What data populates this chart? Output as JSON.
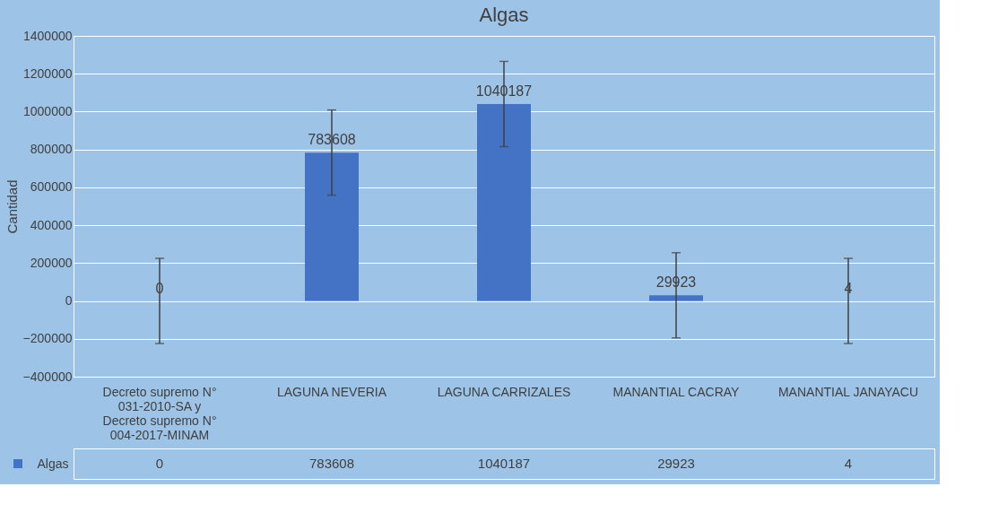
{
  "chart_data": {
    "type": "bar",
    "title": "Algas",
    "ylabel": "Cantidad",
    "categories": [
      "Decreto supremo N° 031-2010-SA y Decreto supremo N° 004-2017-MINAM",
      "LAGUNA NEVERIA",
      "LAGUNA CARRIZALES",
      "MANANTIAL CACRAY",
      "MANANTIAL JANAYACU"
    ],
    "series": [
      {
        "name": "Algas",
        "color": "#4472c4",
        "values": [
          0,
          783608,
          1040187,
          29923,
          4
        ],
        "errors": [
          225000,
          225000,
          225000,
          225000,
          225000
        ],
        "value_labels": [
          "0",
          "783608",
          "1040187",
          "29923",
          "4"
        ]
      }
    ],
    "ylim": [
      -400000,
      1400000
    ],
    "yticks": [
      -400000,
      -200000,
      0,
      200000,
      400000,
      600000,
      800000,
      1000000,
      1200000,
      1400000
    ],
    "grid": "y"
  }
}
